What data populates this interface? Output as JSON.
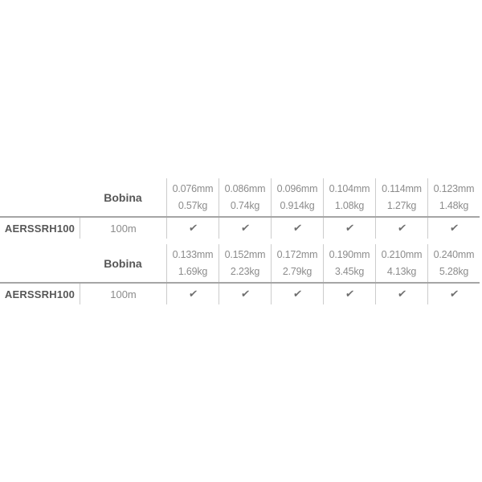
{
  "page": {
    "background": "#ffffff"
  },
  "colors": {
    "text_dark": "#575757",
    "text_gray": "#8c8c8c",
    "divider": "#cccccc",
    "rule": "#a5a5a5",
    "check": "#6e6e6e"
  },
  "check_glyph": "✔",
  "blocks": [
    {
      "spool_label": "Bobina",
      "model": "AERSSRH100",
      "length": "100m",
      "columns": [
        {
          "diameter": "0.076mm",
          "test": "0.57kg",
          "available": true
        },
        {
          "diameter": "0.086mm",
          "test": "0.74kg",
          "available": true
        },
        {
          "diameter": "0.096mm",
          "test": "0.914kg",
          "available": true
        },
        {
          "diameter": "0.104mm",
          "test": "1.08kg",
          "available": true
        },
        {
          "diameter": "0.114mm",
          "test": "1.27kg",
          "available": true
        },
        {
          "diameter": "0.123mm",
          "test": "1.48kg",
          "available": true
        }
      ]
    },
    {
      "spool_label": "Bobina",
      "model": "AERSSRH100",
      "length": "100m",
      "columns": [
        {
          "diameter": "0.133mm",
          "test": "1.69kg",
          "available": true
        },
        {
          "diameter": "0.152mm",
          "test": "2.23kg",
          "available": true
        },
        {
          "diameter": "0.172mm",
          "test": "2.79kg",
          "available": true
        },
        {
          "diameter": "0.190mm",
          "test": "3.45kg",
          "available": true
        },
        {
          "diameter": "0.210mm",
          "test": "4.13kg",
          "available": true
        },
        {
          "diameter": "0.240mm",
          "test": "5.28kg",
          "available": true
        }
      ]
    }
  ]
}
